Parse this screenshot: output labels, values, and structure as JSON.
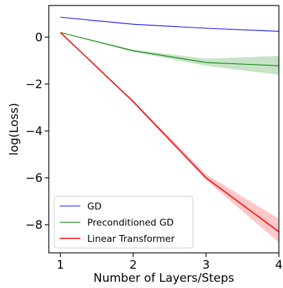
{
  "chart_data": {
    "type": "line",
    "title": "",
    "xlabel": "Number of Layers/Steps",
    "ylabel": "log(Loss)",
    "x": [
      1,
      2,
      3,
      4
    ],
    "xlim": [
      0.84,
      4.0
    ],
    "ylim": [
      -9.2,
      1.35
    ],
    "xticks": [
      1,
      2,
      3,
      4
    ],
    "yticks": [
      0,
      -2,
      -4,
      -6,
      -8
    ],
    "xtick_labels": [
      "1",
      "2",
      "3",
      "4"
    ],
    "ytick_labels": [
      "0",
      "−2",
      "−4",
      "−6",
      "−8"
    ],
    "grid": false,
    "legend_position": "lower-left",
    "series": [
      {
        "name": "GD",
        "color": "#0000ff",
        "values": [
          0.85,
          0.55,
          0.38,
          0.25
        ],
        "band_lower": [
          0.85,
          0.55,
          0.38,
          0.25
        ],
        "band_upper": [
          0.85,
          0.55,
          0.38,
          0.25
        ]
      },
      {
        "name": "Preconditioned GD",
        "color": "#008000",
        "values": [
          0.2,
          -0.58,
          -1.08,
          -1.22
        ],
        "band_lower": [
          0.2,
          -0.63,
          -1.22,
          -1.6
        ],
        "band_upper": [
          0.2,
          -0.53,
          -0.92,
          -0.8
        ]
      },
      {
        "name": "Linear Transformer",
        "color": "#ff0000",
        "values": [
          0.2,
          -2.75,
          -6.0,
          -8.3
        ],
        "band_lower": [
          0.2,
          -2.8,
          -6.1,
          -8.75
        ],
        "band_upper": [
          0.2,
          -2.7,
          -5.85,
          -7.75
        ]
      }
    ]
  }
}
